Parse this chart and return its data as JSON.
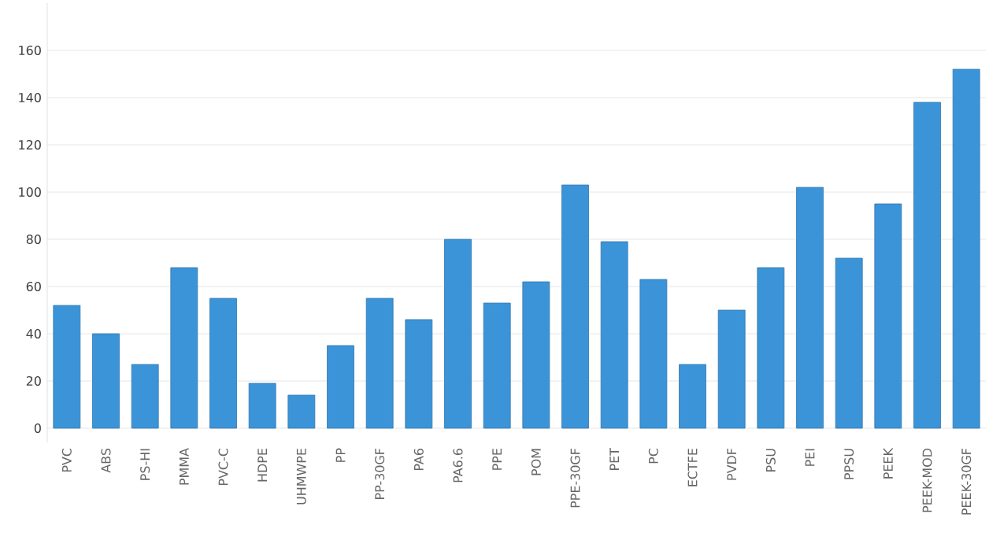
{
  "chart_data": {
    "type": "bar",
    "categories": [
      "PVC",
      "ABS",
      "PS-HI",
      "PMMA",
      "PVC-C",
      "HDPE",
      "UHMWPE",
      "PP",
      "PP-30GF",
      "PA6",
      "PA6.6",
      "PPE",
      "POM",
      "PPE-30GF",
      "PET",
      "PC",
      "ECTFE",
      "PVDF",
      "PSU",
      "PEI",
      "PPSU",
      "PEEK",
      "PEEK-MOD",
      "PEEK-30GF"
    ],
    "values": [
      52,
      40,
      27,
      68,
      55,
      19,
      14,
      35,
      55,
      46,
      80,
      53,
      62,
      103,
      79,
      63,
      27,
      50,
      68,
      102,
      72,
      95,
      138,
      152
    ],
    "color": "#3c94d8",
    "ylim": [
      -6,
      180
    ],
    "yticks": [
      0,
      20,
      40,
      60,
      80,
      100,
      120,
      140,
      160
    ],
    "grid": "y"
  }
}
